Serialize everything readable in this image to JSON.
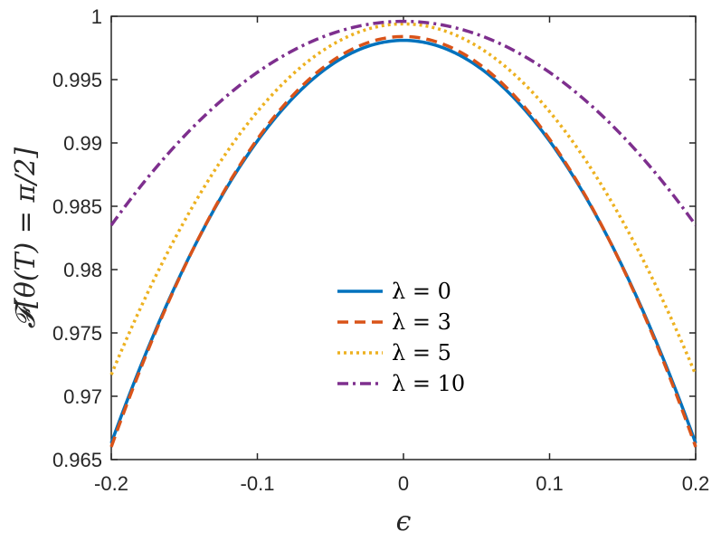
{
  "chart_data": {
    "type": "line",
    "title": "",
    "xlabel": "ϵ",
    "ylabel": "𝓕[θ(T) = π/2]",
    "xlim": [
      -0.2,
      0.2
    ],
    "ylim": [
      0.965,
      1
    ],
    "xticks": [
      -0.2,
      -0.1,
      0,
      0.1,
      0.2
    ],
    "xtick_labels": [
      "-0.2",
      "-0.1",
      "0",
      "0.1",
      "0.2"
    ],
    "yticks": [
      0.965,
      0.97,
      0.975,
      0.98,
      0.985,
      0.99,
      0.995,
      1
    ],
    "ytick_labels": [
      "0.965",
      "0.97",
      "0.975",
      "0.98",
      "0.985",
      "0.99",
      "0.995",
      "1"
    ],
    "grid": false,
    "legend_position": "center",
    "x": [
      -0.2,
      -0.15,
      -0.1,
      -0.05,
      0,
      0.05,
      0.1,
      0.15,
      0.2
    ],
    "series": [
      {
        "name": "λ = 0",
        "color": "#0072BD",
        "dash": "solid",
        "values": [
          0.9663,
          0.978,
          0.9897,
          0.9961,
          0.9981,
          0.9961,
          0.9897,
          0.978,
          0.9663
        ]
      },
      {
        "name": "λ = 3",
        "color": "#D95319",
        "dash": "dashed",
        "values": [
          0.966,
          0.9779,
          0.9898,
          0.9963,
          0.9984,
          0.9963,
          0.9898,
          0.9779,
          0.966
        ]
      },
      {
        "name": "λ = 5",
        "color": "#EDB120",
        "dash": "dotted",
        "values": [
          0.9717,
          0.9828,
          0.9921,
          0.9977,
          0.9994,
          0.9977,
          0.9921,
          0.9828,
          0.9717
        ]
      },
      {
        "name": "λ = 10",
        "color": "#7E2F8E",
        "dash": "dashdot",
        "values": [
          0.9835,
          0.9904,
          0.9954,
          0.9985,
          0.9996,
          0.9985,
          0.9954,
          0.9904,
          0.9835
        ]
      }
    ]
  }
}
